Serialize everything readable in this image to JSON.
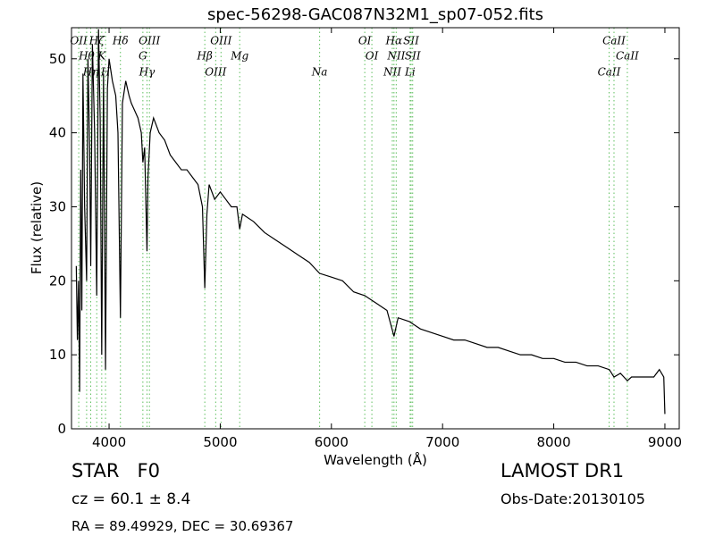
{
  "chart_data": {
    "type": "line",
    "title": "spec-56298-GAC087N32M1_sp07-052.fits",
    "xlabel": "Wavelength (Å)",
    "ylabel": "Flux (relative)",
    "xlim": [
      3662,
      9129
    ],
    "ylim": [
      0,
      54.2
    ],
    "xticks": [
      4000,
      5000,
      6000,
      7000,
      8000,
      9000
    ],
    "yticks": [
      0,
      10,
      20,
      30,
      40,
      50
    ],
    "x": [
      3705,
      3715,
      3725,
      3735,
      3745,
      3755,
      3765,
      3780,
      3798,
      3810,
      3825,
      3835,
      3850,
      3870,
      3889,
      3905,
      3920,
      3934,
      3950,
      3968,
      3985,
      4000,
      4030,
      4060,
      4080,
      4102,
      4120,
      4150,
      4180,
      4200,
      4230,
      4260,
      4290,
      4304,
      4320,
      4341,
      4350,
      4370,
      4400,
      4450,
      4500,
      4550,
      4600,
      4650,
      4700,
      4750,
      4800,
      4840,
      4861,
      4880,
      4900,
      4950,
      5000,
      5050,
      5100,
      5150,
      5175,
      5200,
      5300,
      5400,
      5500,
      5600,
      5700,
      5800,
      5894,
      6000,
      6100,
      6200,
      6300,
      6400,
      6500,
      6563,
      6600,
      6700,
      6800,
      6900,
      7000,
      7100,
      7200,
      7300,
      7400,
      7500,
      7600,
      7700,
      7800,
      7900,
      8000,
      8100,
      8200,
      8300,
      8400,
      8500,
      8542,
      8600,
      8662,
      8700,
      8800,
      8900,
      8950,
      8990,
      9000
    ],
    "series": [
      {
        "color": "#000000",
        "values": [
          22,
          12,
          20,
          5,
          35,
          16,
          48,
          30,
          20,
          50,
          38,
          22,
          52,
          40,
          18,
          54,
          42,
          10,
          48,
          8,
          46,
          50,
          47,
          45,
          40,
          15,
          44,
          47,
          45,
          44,
          43,
          42,
          40,
          36,
          38,
          24,
          34,
          40,
          42,
          40,
          39,
          37,
          36,
          35,
          35,
          34,
          33,
          30,
          19,
          29,
          33,
          31,
          32,
          31,
          30,
          30,
          27,
          29,
          28,
          26.5,
          25.5,
          24.5,
          23.5,
          22.5,
          21,
          20.5,
          20,
          18.5,
          18,
          17,
          16,
          12.5,
          15,
          14.5,
          13.5,
          13,
          12.5,
          12,
          12,
          11.5,
          11,
          11,
          10.5,
          10,
          10,
          9.5,
          9.5,
          9,
          9,
          8.5,
          8.5,
          8,
          7,
          7.5,
          6.5,
          7,
          7,
          7,
          8,
          7,
          2
        ]
      }
    ],
    "line_color": "#5fbf5f",
    "lines": [
      {
        "label": "OII",
        "wavelength": 3727
      },
      {
        "label": "Hθ",
        "wavelength": 3798
      },
      {
        "label": "Hη",
        "wavelength": 3835
      },
      {
        "label": "Hζ",
        "wavelength": 3889
      },
      {
        "label": "K",
        "wavelength": 3934
      },
      {
        "label": "H",
        "wavelength": 3968
      },
      {
        "label": "Hδ",
        "wavelength": 4102
      },
      {
        "label": "G",
        "wavelength": 4304
      },
      {
        "label": "Hγ",
        "wavelength": 4341
      },
      {
        "label": "OIII",
        "wavelength": 4363
      },
      {
        "label": "Hβ",
        "wavelength": 4861
      },
      {
        "label": "OIII",
        "wavelength": 4959
      },
      {
        "label": "OIII",
        "wavelength": 5007
      },
      {
        "label": "Mg",
        "wavelength": 5175
      },
      {
        "label": "Na",
        "wavelength": 5894
      },
      {
        "label": "OI",
        "wavelength": 6300
      },
      {
        "label": "OI",
        "wavelength": 6364
      },
      {
        "label": "NII",
        "wavelength": 6548
      },
      {
        "label": "Hα",
        "wavelength": 6563
      },
      {
        "label": "NII",
        "wavelength": 6583
      },
      {
        "label": "Li",
        "wavelength": 6708
      },
      {
        "label": "SII",
        "wavelength": 6717
      },
      {
        "label": "SII",
        "wavelength": 6731
      },
      {
        "label": "CaII",
        "wavelength": 8498
      },
      {
        "label": "CaII",
        "wavelength": 8542
      },
      {
        "label": "CaII",
        "wavelength": 8662
      }
    ]
  },
  "info": {
    "class": "STAR   F0",
    "redshift": "cz = 60.1 ± 8.4",
    "coords": "RA = 89.49929, DEC = 30.69367",
    "release": "LAMOST DR1",
    "obs_date": "Obs-Date:20130105"
  }
}
